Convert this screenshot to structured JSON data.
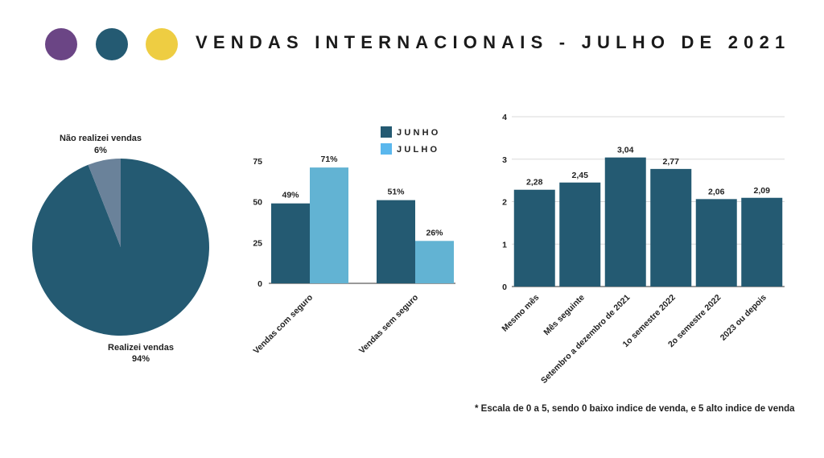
{
  "header": {
    "title": "VENDAS INTERNACIONAIS - JULHO DE 2021",
    "dots": [
      "#6b4585",
      "#245a72",
      "#eecd42"
    ]
  },
  "colors": {
    "dark": "#245a72",
    "light": "#62b3d3",
    "pie_minor": "#6a829a",
    "legend_light": "#5ab7ed",
    "grid": "#d9d9d9",
    "axis": "#333333"
  },
  "chart_data": [
    {
      "type": "pie",
      "slices": [
        {
          "label": "Realizei vendas",
          "value": 94,
          "value_label": "94%"
        },
        {
          "label": "Não realizei vendas",
          "value": 6,
          "value_label": "6%"
        }
      ]
    },
    {
      "type": "bar",
      "categories": [
        "Vendas com seguro",
        "Vendas sem seguro"
      ],
      "series": [
        {
          "name": "JUNHO",
          "values": [
            49,
            51
          ],
          "labels": [
            "49%",
            "51%"
          ]
        },
        {
          "name": "JULHO",
          "values": [
            71,
            26
          ],
          "labels": [
            "71%",
            "26%"
          ]
        }
      ],
      "ylim": [
        0,
        75
      ],
      "yticks": [
        "0",
        "25",
        "50",
        "75"
      ],
      "legend": "top-right"
    },
    {
      "type": "bar",
      "categories": [
        "Mesmo mês",
        "Mês seguinte",
        "Setembro a dezembro de 2021",
        "1o semestre 2022",
        "2o semestre 2022",
        "2023 ou depois"
      ],
      "values": [
        2.28,
        2.45,
        3.04,
        2.77,
        2.06,
        2.09
      ],
      "labels": [
        "2,28",
        "2,45",
        "3,04",
        "2,77",
        "2,06",
        "2,09"
      ],
      "ylim": [
        0,
        4
      ],
      "yticks": [
        "0",
        "1",
        "2",
        "3",
        "4"
      ],
      "grid": true
    }
  ],
  "footnote": "* Escala de 0 a 5, sendo 0 baixo indice de venda, e 5 alto indice de venda"
}
